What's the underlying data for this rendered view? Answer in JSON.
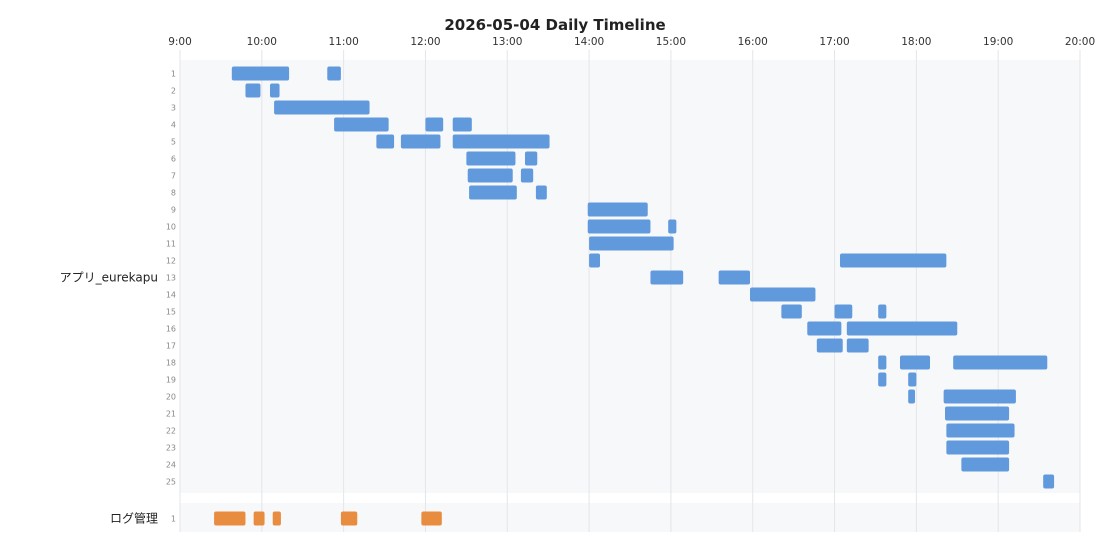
{
  "chart_data": {
    "type": "timeline",
    "title": "2026-05-04 Daily Timeline",
    "x_ticks": [
      "9:00",
      "10:00",
      "11:00",
      "12:00",
      "13:00",
      "14:00",
      "15:00",
      "16:00",
      "17:00",
      "18:00",
      "19:00",
      "20:00"
    ],
    "x_range": [
      "9:00",
      "20:00"
    ],
    "grid": true,
    "groups": [
      {
        "name": "アプリ_eurekapu",
        "color": "#6199dd",
        "rows": [
          {
            "label": "1",
            "bars": [
              [
                "9:38",
                "10:20"
              ],
              [
                "10:48",
                "10:58"
              ]
            ]
          },
          {
            "label": "2",
            "bars": [
              [
                "9:48",
                "9:59"
              ],
              [
                "10:06",
                "10:13"
              ]
            ]
          },
          {
            "label": "3",
            "bars": [
              [
                "10:09",
                "11:19"
              ]
            ]
          },
          {
            "label": "4",
            "bars": [
              [
                "10:53",
                "11:33"
              ],
              [
                "12:00",
                "12:13"
              ],
              [
                "12:20",
                "12:34"
              ]
            ]
          },
          {
            "label": "5",
            "bars": [
              [
                "11:24",
                "11:37"
              ],
              [
                "11:42",
                "12:11"
              ],
              [
                "12:20",
                "13:31"
              ]
            ]
          },
          {
            "label": "6",
            "bars": [
              [
                "12:30",
                "13:06"
              ],
              [
                "13:13",
                "13:22"
              ]
            ]
          },
          {
            "label": "7",
            "bars": [
              [
                "12:31",
                "13:04"
              ],
              [
                "13:10",
                "13:19"
              ]
            ]
          },
          {
            "label": "8",
            "bars": [
              [
                "12:32",
                "13:07"
              ],
              [
                "13:21",
                "13:29"
              ]
            ]
          },
          {
            "label": "9",
            "bars": [
              [
                "13:59",
                "14:43"
              ]
            ]
          },
          {
            "label": "10",
            "bars": [
              [
                "13:59",
                "14:45"
              ],
              [
                "14:58",
                "15:04"
              ]
            ]
          },
          {
            "label": "11",
            "bars": [
              [
                "14:00",
                "15:02"
              ]
            ]
          },
          {
            "label": "12",
            "bars": [
              [
                "14:00",
                "14:08"
              ],
              [
                "17:04",
                "18:22"
              ]
            ]
          },
          {
            "label": "13",
            "bars": [
              [
                "14:45",
                "15:09"
              ],
              [
                "15:35",
                "15:58"
              ]
            ]
          },
          {
            "label": "14",
            "bars": [
              [
                "15:58",
                "16:46"
              ]
            ]
          },
          {
            "label": "15",
            "bars": [
              [
                "16:21",
                "16:36"
              ],
              [
                "17:00",
                "17:13"
              ],
              [
                "17:32",
                "17:38"
              ]
            ]
          },
          {
            "label": "16",
            "bars": [
              [
                "16:40",
                "17:05"
              ],
              [
                "17:09",
                "18:30"
              ]
            ]
          },
          {
            "label": "17",
            "bars": [
              [
                "16:47",
                "17:06"
              ],
              [
                "17:09",
                "17:25"
              ]
            ]
          },
          {
            "label": "18",
            "bars": [
              [
                "17:32",
                "17:38"
              ],
              [
                "17:48",
                "18:10"
              ],
              [
                "18:27",
                "19:36"
              ]
            ]
          },
          {
            "label": "19",
            "bars": [
              [
                "17:32",
                "17:38"
              ],
              [
                "17:54",
                "18:00"
              ]
            ]
          },
          {
            "label": "20",
            "bars": [
              [
                "17:54",
                "17:59"
              ],
              [
                "18:20",
                "18:73"
              ]
            ]
          },
          {
            "label": "21",
            "bars": [
              [
                "18:21",
                "19:08"
              ]
            ]
          },
          {
            "label": "22",
            "bars": [
              [
                "18:22",
                "19:12"
              ]
            ]
          },
          {
            "label": "23",
            "bars": [
              [
                "18:22",
                "19:08"
              ]
            ]
          },
          {
            "label": "24",
            "bars": [
              [
                "18:33",
                "19:08"
              ]
            ]
          },
          {
            "label": "25",
            "bars": [
              [
                "19:33",
                "19:41"
              ]
            ]
          }
        ]
      },
      {
        "name": "ログ管理",
        "color": "#e88c40",
        "rows": [
          {
            "label": "1",
            "bars": [
              [
                "9:25",
                "9:48"
              ],
              [
                "9:54",
                "10:02"
              ],
              [
                "10:08",
                "10:14"
              ],
              [
                "10:58",
                "11:10"
              ],
              [
                "11:57",
                "12:12"
              ]
            ]
          }
        ]
      }
    ]
  }
}
